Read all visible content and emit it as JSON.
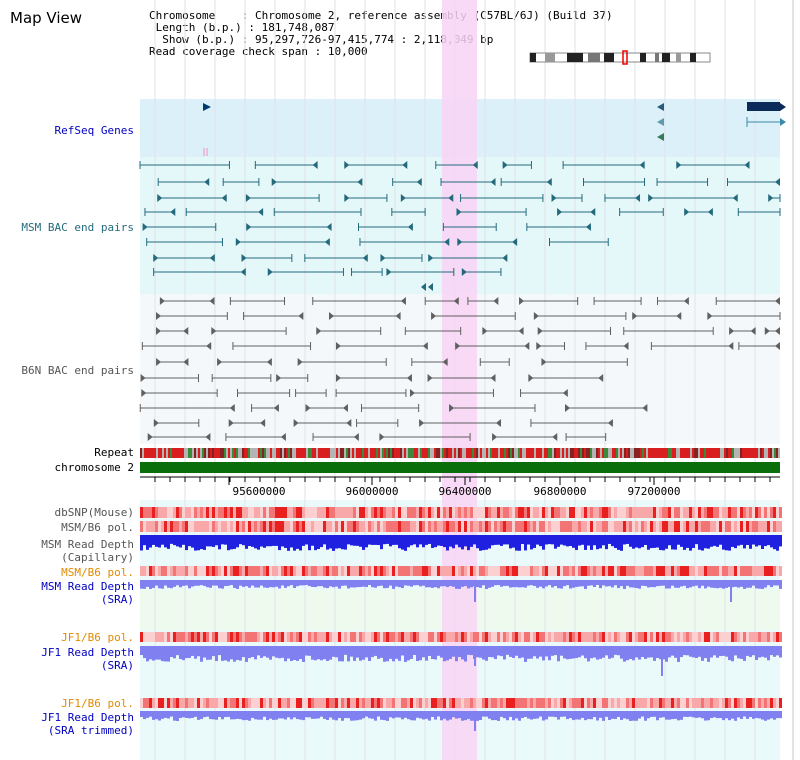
{
  "app": {
    "title": "Map View"
  },
  "header": {
    "chromosome_key": "Chromosome",
    "chromosome_value": "Chromosome 2, reference assembly (C57BL/6J) (Build 37)",
    "length_key": "Length (b.p.)",
    "length_value": "181,748,087",
    "show_key": "Show (b.p.)",
    "show_value": "95,297,726-97,415,774 : 2,118,049 bp",
    "span_key": "Read coverage check span",
    "span_value": "10,000"
  },
  "tracks": {
    "refseq": "RefSeq Genes",
    "msm_bac": "MSM BAC end pairs",
    "b6n_bac": "B6N BAC end pairs",
    "repeat": "Repeat",
    "chromosome": "chromosome 2",
    "dbsnp": "dbSNP(Mouse)",
    "msm_pol": "MSM/B6 pol.",
    "msm_depth_cap": "MSM Read Depth\n(Capillary)",
    "msm_pol_sra": "MSM/B6 pol.",
    "msm_depth_sra": "MSM Read Depth\n(SRA)",
    "jf1_pol": "JF1/B6 pol.",
    "jf1_depth_sra": "JF1 Read Depth\n(SRA)",
    "jf1_pol_trim": "JF1/B6 pol.",
    "jf1_depth_trim": "JF1 Read Depth\n(SRA trimmed)"
  },
  "axis": {
    "ticks": [
      "95600000",
      "96000000",
      "96400000",
      "96800000",
      "97200000"
    ]
  },
  "colors": {
    "highlight": "#f8d4f4",
    "refseq_bg": "#dcf0fa",
    "msm_bac_bg": "#e4f8fa",
    "b6n_bg": "#f4f8fa",
    "chromosome_bar": "#0a6e0a",
    "teal": "#246a7c",
    "gray": "#606060",
    "depth_blue": "#2020e0",
    "depth_light": "#8080f0",
    "accent_orange": "#e38a00"
  }
}
